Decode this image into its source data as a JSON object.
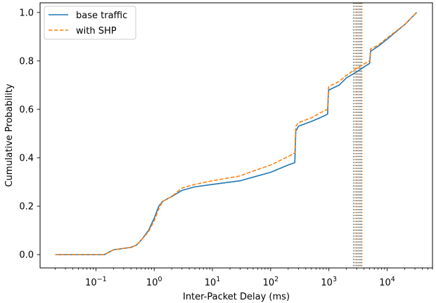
{
  "chart_data": {
    "type": "line",
    "title": "",
    "xlabel": "Inter-Packet Delay (ms)",
    "ylabel": "Cumulative Probability",
    "xscale": "log",
    "xlim": [
      0.011,
      60000
    ],
    "ylim": [
      -0.055,
      1.04
    ],
    "xticks": [
      {
        "value": 0.1,
        "base": "10",
        "exp": "−1"
      },
      {
        "value": 1,
        "base": "10",
        "exp": "0"
      },
      {
        "value": 10,
        "base": "10",
        "exp": "1"
      },
      {
        "value": 100,
        "base": "10",
        "exp": "2"
      },
      {
        "value": 1000,
        "base": "10",
        "exp": "3"
      },
      {
        "value": 10000,
        "base": "10",
        "exp": "4"
      }
    ],
    "yticks": [
      {
        "value": 0.0,
        "label": "0.0"
      },
      {
        "value": 0.2,
        "label": "0.2"
      },
      {
        "value": 0.4,
        "label": "0.4"
      },
      {
        "value": 0.6,
        "label": "0.6"
      },
      {
        "value": 0.8,
        "label": "0.8"
      },
      {
        "value": 1.0,
        "label": "1.0"
      }
    ],
    "grid": false,
    "legend": "upper-left",
    "series": [
      {
        "name": "base traffic",
        "color": "#1f77b4",
        "style": "solid",
        "x": [
          0.02,
          0.14,
          0.2,
          0.4,
          0.5,
          0.6,
          0.8,
          1.0,
          1.2,
          1.4,
          2.0,
          3.0,
          5.0,
          10,
          30,
          50,
          100,
          200,
          260,
          270,
          300,
          500,
          700,
          950,
          980,
          1000,
          1500,
          2000,
          3000,
          5000,
          5200,
          7000,
          10000,
          20000,
          32000
        ],
        "y": [
          0.0,
          0.0,
          0.02,
          0.03,
          0.04,
          0.06,
          0.1,
          0.15,
          0.2,
          0.22,
          0.24,
          0.265,
          0.28,
          0.29,
          0.305,
          0.32,
          0.34,
          0.37,
          0.38,
          0.51,
          0.53,
          0.55,
          0.565,
          0.58,
          0.67,
          0.68,
          0.7,
          0.73,
          0.755,
          0.79,
          0.84,
          0.86,
          0.89,
          0.95,
          1.0
        ]
      },
      {
        "name": "with SHP",
        "color": "#ff7f0e",
        "style": "dashed",
        "x": [
          0.02,
          0.14,
          0.2,
          0.4,
          0.5,
          0.6,
          0.8,
          1.0,
          1.2,
          1.4,
          2.0,
          3.0,
          5.0,
          10,
          30,
          50,
          100,
          200,
          260,
          270,
          300,
          500,
          700,
          950,
          980,
          1000,
          1500,
          2000,
          3000,
          5000,
          5200,
          7000,
          10000,
          20000,
          32000
        ],
        "y": [
          0.0,
          0.0,
          0.02,
          0.03,
          0.04,
          0.06,
          0.095,
          0.14,
          0.19,
          0.22,
          0.24,
          0.275,
          0.29,
          0.305,
          0.325,
          0.345,
          0.37,
          0.405,
          0.42,
          0.53,
          0.545,
          0.565,
          0.585,
          0.6,
          0.685,
          0.695,
          0.715,
          0.74,
          0.77,
          0.8,
          0.85,
          0.865,
          0.895,
          0.95,
          1.0
        ]
      }
    ],
    "vlines": [
      {
        "x": 2650,
        "color": "#1f77b4",
        "style": "dotted"
      },
      {
        "x": 2800,
        "color": "#ff7f0e",
        "style": "dotted"
      },
      {
        "x": 2950,
        "color": "#1f77b4",
        "style": "dotted"
      },
      {
        "x": 3100,
        "color": "#ff7f0e",
        "style": "dotted"
      },
      {
        "x": 3250,
        "color": "#1f77b4",
        "style": "dotted"
      },
      {
        "x": 3400,
        "color": "#ff7f0e",
        "style": "dotted"
      },
      {
        "x": 3550,
        "color": "#1f77b4",
        "style": "dotted"
      },
      {
        "x": 3700,
        "color": "#ff7f0e",
        "style": "dotted"
      }
    ]
  }
}
